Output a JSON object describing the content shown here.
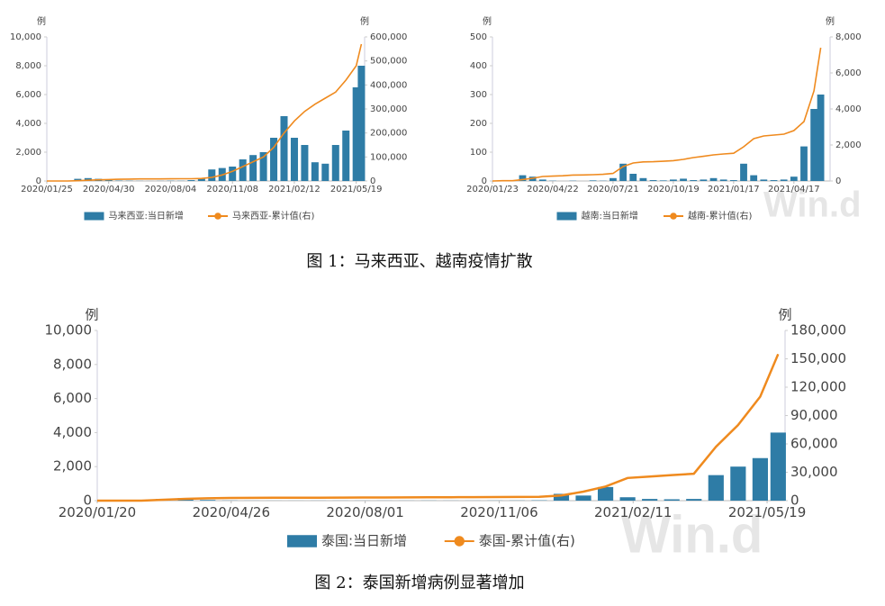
{
  "chart_data": [
    {
      "type": "combo",
      "legend": "bottom",
      "y_label": "例",
      "y2_label": "例",
      "x": [
        "2020/01/25",
        "2020/02/10",
        "2020/02/26",
        "2020/03/13",
        "2020/03/29",
        "2020/04/14",
        "2020/04/30",
        "2020/05/16",
        "2020/06/01",
        "2020/06/17",
        "2020/07/03",
        "2020/07/19",
        "2020/08/04",
        "2020/08/20",
        "2020/09/05",
        "2020/09/21",
        "2020/10/07",
        "2020/10/23",
        "2020/11/08",
        "2020/11/24",
        "2020/12/10",
        "2020/12/26",
        "2021/01/11",
        "2021/01/27",
        "2021/02/12",
        "2021/02/28",
        "2021/03/16",
        "2021/04/01",
        "2021/04/17",
        "2021/05/03",
        "2021/05/19",
        "2021/05/27"
      ],
      "xlim": [
        "2020/01/25",
        "2021/06/01"
      ],
      "xticks": [
        "2020/01/25",
        "2020/04/30",
        "2020/08/04",
        "2020/11/08",
        "2021/02/12",
        "2021/05/19"
      ],
      "ylim": [
        0,
        10000
      ],
      "yticks": [
        0,
        {
          "value": 2000,
          "label": "2,000"
        },
        {
          "value": 4000,
          "label": "4,000"
        },
        {
          "value": 6000,
          "label": "6,000"
        },
        {
          "value": 8000,
          "label": "8,000"
        },
        {
          "value": 10000,
          "label": "10,000"
        }
      ],
      "y2lim": [
        0,
        600000
      ],
      "y2ticks": [
        0,
        {
          "value": 100000,
          "label": "100,000"
        },
        {
          "value": 200000,
          "label": "200,000"
        },
        {
          "value": 300000,
          "label": "300,000"
        },
        {
          "value": 400000,
          "label": "400,000"
        },
        {
          "value": 500000,
          "label": "500,000"
        },
        {
          "value": 600000,
          "label": "600,000"
        }
      ],
      "series": [
        {
          "name": "马来西亚:当日新增",
          "type": "bar",
          "color": "#2e7ca6",
          "values": [
            0,
            0,
            20,
            150,
            200,
            150,
            60,
            30,
            20,
            10,
            5,
            10,
            20,
            15,
            60,
            150,
            800,
            900,
            1000,
            1500,
            1800,
            2000,
            3000,
            4500,
            3000,
            2500,
            1300,
            1200,
            2500,
            3500,
            6500,
            8000
          ]
        },
        {
          "name": "马来西亚-累计值(右)",
          "type": "line",
          "axis": "y2",
          "color": "#ef8a1e",
          "values": [
            0,
            20,
            30,
            1000,
            3000,
            5000,
            6000,
            7000,
            8000,
            8500,
            8700,
            8800,
            9000,
            9200,
            9500,
            10500,
            15000,
            25000,
            40000,
            60000,
            80000,
            100000,
            140000,
            200000,
            250000,
            290000,
            320000,
            345000,
            370000,
            420000,
            480000,
            570000
          ]
        }
      ]
    },
    {
      "type": "combo",
      "legend": "bottom",
      "y_label": "例",
      "y2_label": "例",
      "x": [
        "2020/01/23",
        "2020/02/07",
        "2020/02/22",
        "2020/03/08",
        "2020/03/23",
        "2020/04/07",
        "2020/04/22",
        "2020/05/07",
        "2020/05/22",
        "2020/06/06",
        "2020/06/21",
        "2020/07/06",
        "2020/07/21",
        "2020/08/05",
        "2020/08/20",
        "2020/09/04",
        "2020/09/19",
        "2020/10/04",
        "2020/10/19",
        "2020/11/03",
        "2020/11/18",
        "2020/12/03",
        "2020/12/18",
        "2021/01/02",
        "2021/01/17",
        "2021/02/01",
        "2021/02/16",
        "2021/03/03",
        "2021/03/18",
        "2021/04/02",
        "2021/04/17",
        "2021/05/02",
        "2021/05/17",
        "2021/05/27"
      ],
      "xlim": [
        "2020/01/23",
        "2021/06/10"
      ],
      "xticks": [
        "2020/01/23",
        "2020/04/22",
        "2020/07/21",
        "2020/10/19",
        "2021/01/17",
        "2021/04/17"
      ],
      "ylim": [
        0,
        500
      ],
      "yticks": [
        0,
        100,
        200,
        300,
        400,
        500
      ],
      "y2lim": [
        0,
        8000
      ],
      "y2ticks": [
        0,
        {
          "value": 2000,
          "label": "2,000"
        },
        {
          "value": 4000,
          "label": "4,000"
        },
        {
          "value": 6000,
          "label": "6,000"
        },
        {
          "value": 8000,
          "label": "8,000"
        }
      ],
      "series": [
        {
          "name": "越南:当日新增",
          "type": "bar",
          "color": "#2e7ca6",
          "values": [
            0,
            1,
            0,
            20,
            15,
            5,
            1,
            0,
            1,
            0,
            2,
            1,
            10,
            60,
            25,
            10,
            3,
            2,
            5,
            8,
            3,
            5,
            10,
            5,
            3,
            60,
            20,
            5,
            3,
            5,
            15,
            120,
            250,
            300
          ]
        },
        {
          "name": "越南-累计值(右)",
          "type": "line",
          "axis": "y2",
          "color": "#ef8a1e",
          "values": [
            0,
            15,
            16,
            80,
            150,
            250,
            270,
            290,
            330,
            335,
            350,
            370,
            420,
            800,
            1000,
            1060,
            1070,
            1095,
            1130,
            1200,
            1300,
            1370,
            1450,
            1500,
            1540,
            1900,
            2350,
            2500,
            2550,
            2600,
            2800,
            3300,
            5000,
            7400
          ]
        }
      ]
    },
    {
      "type": "combo",
      "legend": "bottom",
      "y_label": "例",
      "y2_label": "例",
      "x": [
        "2020/01/20",
        "2020/02/05",
        "2020/02/21",
        "2020/03/08",
        "2020/03/24",
        "2020/04/09",
        "2020/04/25",
        "2020/05/11",
        "2020/05/27",
        "2020/06/12",
        "2020/06/28",
        "2020/07/14",
        "2020/07/30",
        "2020/08/15",
        "2020/08/31",
        "2020/09/16",
        "2020/10/02",
        "2020/10/18",
        "2020/11/03",
        "2020/11/19",
        "2020/12/05",
        "2020/12/21",
        "2021/01/06",
        "2021/01/22",
        "2021/02/07",
        "2021/02/23",
        "2021/03/11",
        "2021/03/27",
        "2021/04/12",
        "2021/04/28",
        "2021/05/14",
        "2021/05/27"
      ],
      "xlim": [
        "2020/01/20",
        "2021/06/01"
      ],
      "xticks": [
        "2020/01/20",
        "2020/04/26",
        "2020/08/01",
        "2020/11/06",
        "2021/02/11",
        "2021/05/19"
      ],
      "ylim": [
        0,
        10000
      ],
      "yticks": [
        0,
        {
          "value": 2000,
          "label": "2,000"
        },
        {
          "value": 4000,
          "label": "4,000"
        },
        {
          "value": 6000,
          "label": "6,000"
        },
        {
          "value": 8000,
          "label": "8,000"
        },
        {
          "value": 10000,
          "label": "10,000"
        }
      ],
      "y2lim": [
        0,
        180000
      ],
      "y2ticks": [
        0,
        {
          "value": 30000,
          "label": "30,000"
        },
        {
          "value": 60000,
          "label": "60,000"
        },
        {
          "value": 90000,
          "label": "90,000"
        },
        {
          "value": 120000,
          "label": "120,000"
        },
        {
          "value": 150000,
          "label": "150,000"
        },
        {
          "value": 180000,
          "label": "180,000"
        }
      ],
      "series": [
        {
          "name": "泰国:当日新增",
          "type": "bar",
          "color": "#2e7ca6",
          "values": [
            0,
            0,
            5,
            100,
            150,
            40,
            10,
            5,
            3,
            3,
            5,
            5,
            5,
            5,
            5,
            8,
            5,
            5,
            8,
            10,
            20,
            400,
            300,
            800,
            200,
            100,
            80,
            100,
            1500,
            2000,
            2500,
            4000
          ]
        },
        {
          "name": "泰国-累计值(右)",
          "type": "line",
          "axis": "y2",
          "color": "#ef8a1e",
          "values": [
            0,
            10,
            40,
            1000,
            1900,
            2500,
            2900,
            3000,
            3050,
            3130,
            3170,
            3220,
            3300,
            3380,
            3450,
            3500,
            3600,
            3700,
            3800,
            3900,
            4100,
            5500,
            9500,
            15000,
            24000,
            25500,
            27000,
            28500,
            57000,
            80000,
            110000,
            155000
          ]
        }
      ]
    }
  ],
  "captions": [
    "图 1：马来西亚、越南疫情扩散",
    "图 2：泰国新增病例显著增加"
  ],
  "watermark": "Win.d"
}
